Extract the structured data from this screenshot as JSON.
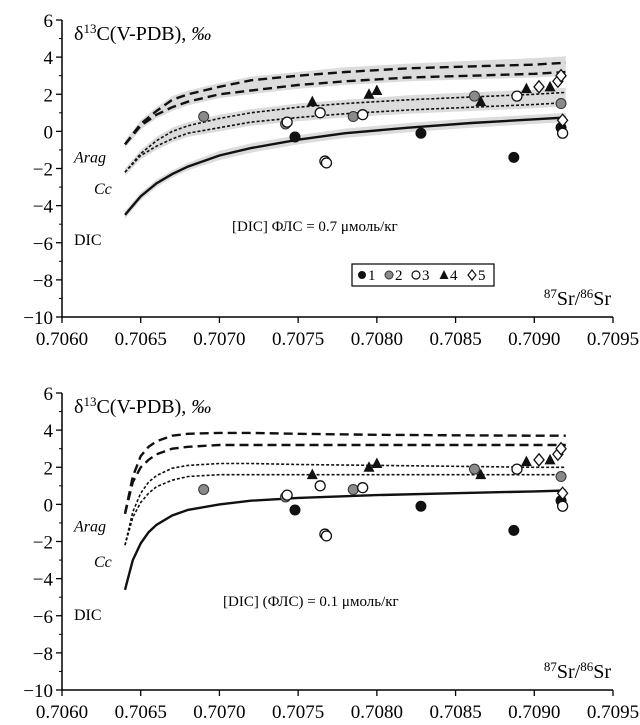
{
  "chart_data": [
    {
      "type": "scatter",
      "ylabel": "δ13C(V-PDB), ‰",
      "ylabel_parts": {
        "pre": "δ",
        "sup": "13",
        "mid": "C(V-PDB), ",
        "unit": "‰"
      },
      "xlabel": "87Sr/86Sr",
      "xlabel_parts": {
        "sup1": "87",
        "a": "Sr/",
        "sup2": "86",
        "b": "Sr"
      },
      "xlim": [
        0.706,
        0.7095
      ],
      "ylim": [
        -10,
        6
      ],
      "xticks": [
        "0.7060",
        "0.7065",
        "0.7070",
        "0.7075",
        "0.7080",
        "0.7085",
        "0.7090",
        "0.7095"
      ],
      "yticks": [
        6,
        4,
        2,
        0,
        -2,
        -4,
        -6,
        -8,
        -10
      ],
      "annotation": "[DIC] ФЛС = 0.7 μмоль/кг",
      "curve_labels": [
        "Arag",
        "Cc",
        "DIC"
      ],
      "legend": [
        "1",
        "2",
        "3",
        "4",
        "5"
      ],
      "series": [
        {
          "name": "1",
          "marker": "filled-circle",
          "x": [
            0.70748,
            0.70828,
            0.70887,
            0.70917
          ],
          "y": [
            -0.3,
            -0.1,
            -1.4,
            0.2
          ]
        },
        {
          "name": "2",
          "marker": "gray-circle",
          "x": [
            0.7069,
            0.70742,
            0.70785,
            0.70862,
            0.70917
          ],
          "y": [
            0.8,
            0.4,
            0.8,
            1.9,
            1.5
          ]
        },
        {
          "name": "3",
          "marker": "open-circle",
          "x": [
            0.70743,
            0.70764,
            0.70767,
            0.70768,
            0.70791,
            0.70889,
            0.70918
          ],
          "y": [
            0.5,
            1.0,
            -1.6,
            -1.7,
            0.9,
            1.9,
            -0.1
          ]
        },
        {
          "name": "4",
          "marker": "filled-triangle",
          "x": [
            0.70759,
            0.70795,
            0.708,
            0.70866,
            0.70895,
            0.7091
          ],
          "y": [
            1.6,
            2.0,
            2.2,
            1.6,
            2.3,
            2.4
          ]
        },
        {
          "name": "5",
          "marker": "open-diamond",
          "x": [
            0.70903,
            0.70915,
            0.70917,
            0.70918
          ],
          "y": [
            2.4,
            2.7,
            3.0,
            0.6
          ]
        }
      ],
      "curves": [
        {
          "label": "Arag",
          "style": "dashed-heavy",
          "x": [
            0.7064,
            0.7065,
            0.7066,
            0.7067,
            0.7068,
            0.707,
            0.7072,
            0.7075,
            0.7078,
            0.7082,
            0.7086,
            0.709,
            0.7092
          ],
          "y": [
            -0.7,
            0.4,
            1.1,
            1.7,
            2.0,
            2.4,
            2.75,
            3.0,
            3.2,
            3.4,
            3.5,
            3.6,
            3.7
          ]
        },
        {
          "label": "Arag-2",
          "style": "dashed-heavy",
          "x": [
            0.7064,
            0.7065,
            0.7066,
            0.7067,
            0.7068,
            0.707,
            0.7072,
            0.7075,
            0.7078,
            0.7082,
            0.7086,
            0.709,
            0.7092
          ],
          "y": [
            -0.7,
            0.3,
            0.9,
            1.3,
            1.6,
            2.0,
            2.2,
            2.5,
            2.7,
            2.9,
            3.0,
            3.1,
            3.2
          ]
        },
        {
          "label": "Cc",
          "style": "dashed-fine",
          "x": [
            0.7064,
            0.7065,
            0.7066,
            0.7067,
            0.7068,
            0.707,
            0.7072,
            0.7075,
            0.7078,
            0.7082,
            0.7086,
            0.709,
            0.7092
          ],
          "y": [
            -2.2,
            -1.2,
            -0.5,
            0.0,
            0.3,
            0.7,
            1.0,
            1.3,
            1.5,
            1.7,
            1.85,
            2.0,
            2.1
          ]
        },
        {
          "label": "Cc-2",
          "style": "dashed-fine",
          "x": [
            0.7064,
            0.7065,
            0.7066,
            0.7067,
            0.7068,
            0.707,
            0.7072,
            0.7075,
            0.7078,
            0.7082,
            0.7086,
            0.709,
            0.7092
          ],
          "y": [
            -2.2,
            -1.3,
            -0.8,
            -0.4,
            -0.1,
            0.2,
            0.5,
            0.75,
            0.95,
            1.15,
            1.3,
            1.45,
            1.55
          ]
        },
        {
          "label": "DIC",
          "style": "solid",
          "x": [
            0.7064,
            0.7065,
            0.7066,
            0.7067,
            0.7068,
            0.707,
            0.7072,
            0.7075,
            0.7078,
            0.7082,
            0.7086,
            0.709,
            0.7092
          ],
          "y": [
            -4.5,
            -3.5,
            -2.8,
            -2.3,
            -1.9,
            -1.3,
            -0.9,
            -0.45,
            -0.1,
            0.2,
            0.45,
            0.65,
            0.75
          ]
        }
      ],
      "bands": [
        {
          "upper": [
            -0.5,
            0.6,
            1.3,
            1.9,
            2.2,
            2.6,
            2.95,
            3.2,
            3.45,
            3.65,
            3.8,
            3.95,
            4.05
          ],
          "lower": [
            -0.9,
            0.1,
            0.7,
            1.1,
            1.4,
            1.8,
            2.0,
            2.3,
            2.5,
            2.7,
            2.8,
            2.9,
            3.0
          ]
        },
        {
          "upper": [
            -2.0,
            -1.0,
            -0.3,
            0.2,
            0.5,
            0.9,
            1.2,
            1.5,
            1.7,
            1.95,
            2.1,
            2.25,
            2.35
          ]
        },
        {
          "lower": [
            -2.4,
            -1.5,
            -1.0,
            -0.6,
            -0.3,
            0.0,
            0.3,
            0.55,
            0.75,
            0.95,
            1.1,
            1.25,
            1.35
          ]
        },
        {
          "upper": [
            -4.3,
            -3.3,
            -2.6,
            -2.1,
            -1.7,
            -1.05,
            -0.65,
            -0.2,
            0.15,
            0.45,
            0.7,
            0.9,
            1.0
          ],
          "lower": [
            -4.7,
            -3.7,
            -3.0,
            -2.5,
            -2.1,
            -1.55,
            -1.15,
            -0.7,
            -0.35,
            -0.05,
            0.2,
            0.4,
            0.5
          ]
        }
      ]
    },
    {
      "type": "scatter",
      "ylabel": "δ13C(V-PDB), ‰",
      "ylabel_parts": {
        "pre": "δ",
        "sup": "13",
        "mid": "C(V-PDB), ",
        "unit": "‰"
      },
      "xlabel": "87Sr/86Sr",
      "xlabel_parts": {
        "sup1": "87",
        "a": "Sr/",
        "sup2": "86",
        "b": "Sr"
      },
      "xlim": [
        0.706,
        0.7095
      ],
      "ylim": [
        -10,
        6
      ],
      "xticks": [
        "0.7060",
        "0.7065",
        "0.7070",
        "0.7075",
        "0.7080",
        "0.7085",
        "0.7090",
        "0.7095"
      ],
      "yticks": [
        6,
        4,
        2,
        0,
        -2,
        -4,
        -6,
        -8,
        -10
      ],
      "annotation": "[DIC] (ФЛС) = 0.1 μмоль/кг",
      "curve_labels": [
        "Arag",
        "Cc",
        "DIC"
      ],
      "series": [
        {
          "name": "1",
          "marker": "filled-circle",
          "x": [
            0.70748,
            0.70828,
            0.70887,
            0.70917
          ],
          "y": [
            -0.3,
            -0.1,
            -1.4,
            0.2
          ]
        },
        {
          "name": "2",
          "marker": "gray-circle",
          "x": [
            0.7069,
            0.70742,
            0.70785,
            0.70862,
            0.70917
          ],
          "y": [
            0.8,
            0.4,
            0.8,
            1.9,
            1.5
          ]
        },
        {
          "name": "3",
          "marker": "open-circle",
          "x": [
            0.70743,
            0.70764,
            0.70767,
            0.70768,
            0.70791,
            0.70889,
            0.70918
          ],
          "y": [
            0.5,
            1.0,
            -1.6,
            -1.7,
            0.9,
            1.9,
            -0.1
          ]
        },
        {
          "name": "4",
          "marker": "filled-triangle",
          "x": [
            0.70759,
            0.70795,
            0.708,
            0.70866,
            0.70895,
            0.7091
          ],
          "y": [
            1.6,
            2.0,
            2.2,
            1.6,
            2.3,
            2.4
          ]
        },
        {
          "name": "5",
          "marker": "open-diamond",
          "x": [
            0.70903,
            0.70915,
            0.70917,
            0.70918
          ],
          "y": [
            2.4,
            2.7,
            3.0,
            0.6
          ]
        }
      ],
      "curves": [
        {
          "label": "Arag",
          "style": "dashed-heavy",
          "x": [
            0.7064,
            0.70645,
            0.7065,
            0.70655,
            0.7066,
            0.7067,
            0.7068,
            0.707,
            0.7072,
            0.7075,
            0.708,
            0.7085,
            0.709,
            0.7092
          ],
          "y": [
            -0.5,
            1.5,
            2.6,
            3.1,
            3.4,
            3.7,
            3.8,
            3.85,
            3.85,
            3.8,
            3.75,
            3.72,
            3.7,
            3.7
          ]
        },
        {
          "label": "Arag-2",
          "style": "dashed-heavy",
          "x": [
            0.7064,
            0.70645,
            0.7065,
            0.70655,
            0.7066,
            0.7067,
            0.7068,
            0.707,
            0.7072,
            0.7075,
            0.708,
            0.7085,
            0.709,
            0.7092
          ],
          "y": [
            -0.5,
            1.2,
            2.0,
            2.4,
            2.7,
            3.0,
            3.1,
            3.2,
            3.2,
            3.2,
            3.2,
            3.2,
            3.2,
            3.2
          ]
        },
        {
          "label": "Cc",
          "style": "dashed-fine",
          "x": [
            0.7064,
            0.70645,
            0.7065,
            0.70655,
            0.7066,
            0.7067,
            0.7068,
            0.707,
            0.7072,
            0.7075,
            0.708,
            0.7085,
            0.709,
            0.7092
          ],
          "y": [
            -2.2,
            -0.4,
            0.6,
            1.2,
            1.55,
            1.95,
            2.1,
            2.2,
            2.2,
            2.15,
            2.1,
            2.05,
            2.0,
            2.0
          ]
        },
        {
          "label": "Cc-2",
          "style": "dashed-fine",
          "x": [
            0.7064,
            0.70645,
            0.7065,
            0.70655,
            0.7066,
            0.7067,
            0.7068,
            0.707,
            0.7072,
            0.7075,
            0.708,
            0.7085,
            0.709,
            0.7092
          ],
          "y": [
            -2.2,
            -0.7,
            0.1,
            0.6,
            0.95,
            1.3,
            1.5,
            1.6,
            1.6,
            1.6,
            1.6,
            1.6,
            1.6,
            1.6
          ]
        },
        {
          "label": "DIC",
          "style": "solid",
          "x": [
            0.7064,
            0.70645,
            0.7065,
            0.70655,
            0.7066,
            0.7067,
            0.7068,
            0.707,
            0.7072,
            0.7075,
            0.708,
            0.7085,
            0.709,
            0.7092
          ],
          "y": [
            -4.6,
            -3.0,
            -2.1,
            -1.5,
            -1.1,
            -0.6,
            -0.3,
            0.0,
            0.2,
            0.35,
            0.5,
            0.6,
            0.7,
            0.75
          ]
        }
      ]
    }
  ]
}
